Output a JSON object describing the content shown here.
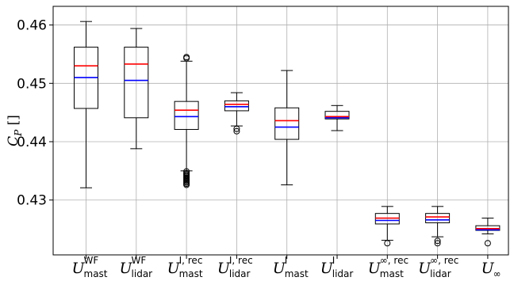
{
  "chart_data": {
    "type": "box",
    "ylabel": {
      "main": "C",
      "sub": "P",
      "unit": " []"
    },
    "ylim": [
      0.4206,
      0.4632
    ],
    "yticks": [
      {
        "value": 0.43,
        "label": "0.43"
      },
      {
        "value": 0.44,
        "label": "0.44"
      },
      {
        "value": 0.45,
        "label": "0.45"
      },
      {
        "value": 0.46,
        "label": "0.46"
      }
    ],
    "grid": true,
    "median_color": "#ff0000",
    "mean_color": "#0000ff",
    "box_color": "#000000",
    "categories": [
      {
        "base": "U",
        "sup": "WF",
        "sub": "mast"
      },
      {
        "base": "U",
        "sup": "WF",
        "sub": "lidar"
      },
      {
        "base": "U",
        "sup": "I, rec",
        "sub": "mast"
      },
      {
        "base": "U",
        "sup": "I, rec",
        "sub": "lidar"
      },
      {
        "base": "U",
        "sup": "I",
        "sub": "mast"
      },
      {
        "base": "U",
        "sup": "I",
        "sub": "lidar"
      },
      {
        "base": "U",
        "sup": "∞, rec",
        "sub": "mast"
      },
      {
        "base": "U",
        "sup": "∞, rec",
        "sub": "lidar"
      },
      {
        "base": "U",
        "sup": "",
        "sub": "∞"
      }
    ],
    "boxes": [
      {
        "whislo": 0.4321,
        "q1": 0.4457,
        "median": 0.453,
        "mean": 0.451,
        "q3": 0.4562,
        "whishi": 0.4606,
        "fliers": []
      },
      {
        "whislo": 0.4388,
        "q1": 0.4441,
        "median": 0.4533,
        "mean": 0.4505,
        "q3": 0.4562,
        "whishi": 0.4594,
        "fliers": []
      },
      {
        "whislo": 0.435,
        "q1": 0.4421,
        "median": 0.4454,
        "mean": 0.4443,
        "q3": 0.4469,
        "whishi": 0.4538,
        "fliers": [
          0.4326,
          0.4328,
          0.433,
          0.4332,
          0.4334,
          0.4336,
          0.4338,
          0.434,
          0.4342,
          0.4344,
          0.4346,
          0.4349,
          0.4543,
          0.4545
        ]
      },
      {
        "whislo": 0.4427,
        "q1": 0.4453,
        "median": 0.4464,
        "mean": 0.446,
        "q3": 0.447,
        "whishi": 0.4484,
        "fliers": [
          0.4418,
          0.4422
        ]
      },
      {
        "whislo": 0.4326,
        "q1": 0.4404,
        "median": 0.4436,
        "mean": 0.4425,
        "q3": 0.4458,
        "whishi": 0.4522,
        "fliers": []
      },
      {
        "whislo": 0.4419,
        "q1": 0.4439,
        "median": 0.4443,
        "mean": 0.4441,
        "q3": 0.4452,
        "whishi": 0.4462,
        "fliers": []
      },
      {
        "whislo": 0.4231,
        "q1": 0.4259,
        "median": 0.4269,
        "mean": 0.4265,
        "q3": 0.4277,
        "whishi": 0.4289,
        "fliers": [
          0.4226
        ]
      },
      {
        "whislo": 0.4237,
        "q1": 0.4261,
        "median": 0.4271,
        "mean": 0.4266,
        "q3": 0.4277,
        "whishi": 0.4289,
        "fliers": [
          0.4226,
          0.423
        ]
      },
      {
        "whislo": 0.4242,
        "q1": 0.4248,
        "median": 0.4251,
        "mean": 0.4249,
        "q3": 0.4256,
        "whishi": 0.4269,
        "fliers": [
          0.4226
        ]
      }
    ]
  }
}
